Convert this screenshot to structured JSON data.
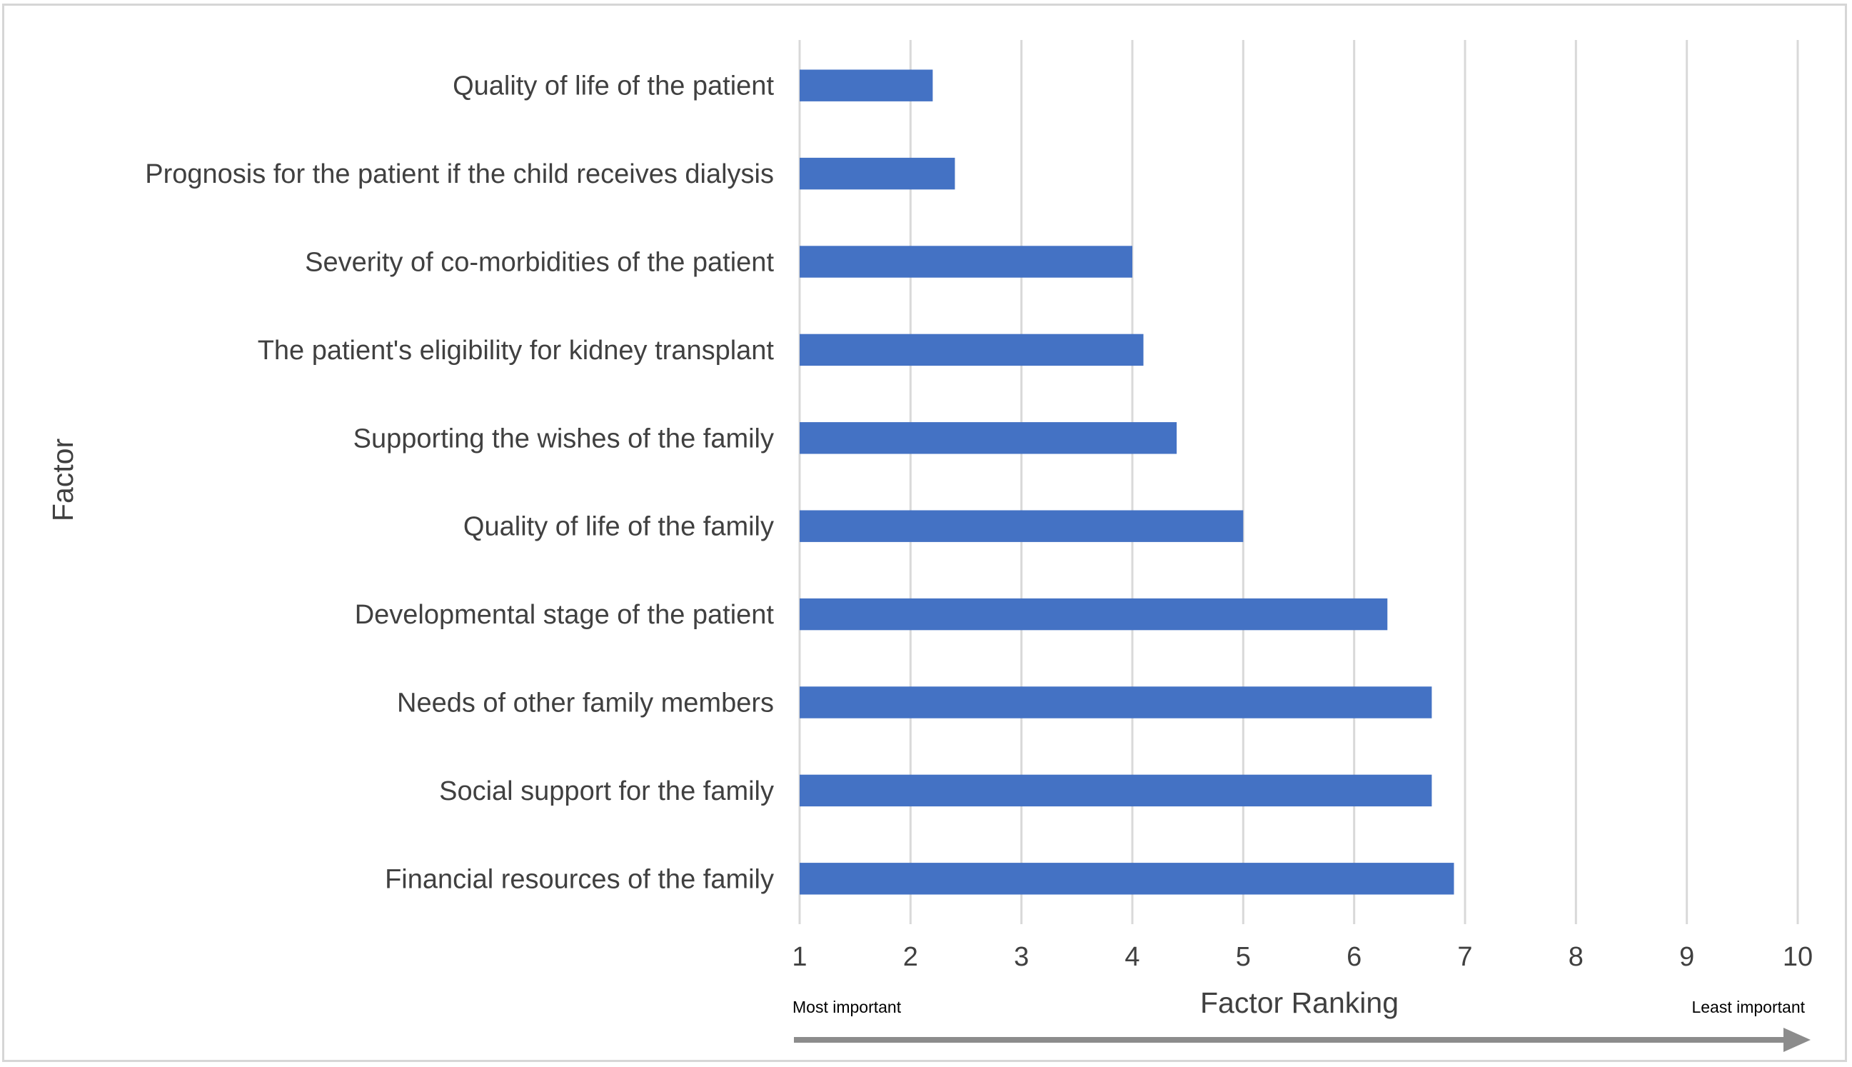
{
  "chart_data": {
    "type": "bar",
    "orientation": "horizontal",
    "categories": [
      "Quality of life of the patient",
      "Prognosis for the patient if the child receives dialysis",
      "Severity of co-morbidities of the patient",
      "The patient's eligibility for kidney transplant",
      "Supporting the wishes of the family",
      "Quality of life of the family",
      "Developmental stage of the patient",
      "Needs of other family members",
      "Social support for the family",
      "Financial resources of the family"
    ],
    "values": [
      2.2,
      2.4,
      4.0,
      4.1,
      4.4,
      5.0,
      6.3,
      6.7,
      6.7,
      6.9
    ],
    "xlabel": "Factor Ranking",
    "ylabel": "Factor",
    "xlim": [
      1,
      10
    ],
    "xticks": [
      "1",
      "2",
      "3",
      "4",
      "5",
      "6",
      "7",
      "8",
      "9",
      "10"
    ],
    "grid": "vertical",
    "bar_color": "#4472c4",
    "grid_color": "#d9d9d9",
    "arrow_color": "#8c8c8c",
    "scale_left_label": "Most important",
    "scale_right_label": "Least important"
  }
}
